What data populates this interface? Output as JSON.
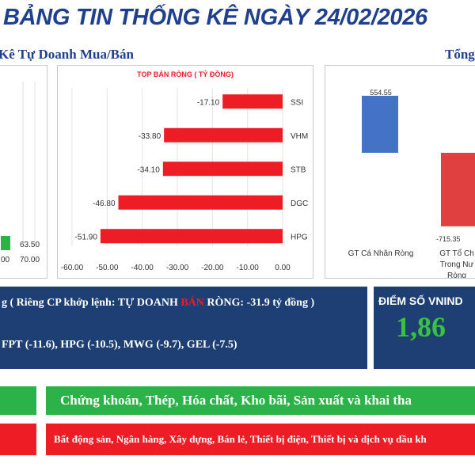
{
  "title": "BẢNG TIN THỐNG KÊ NGÀY 24/02/2026",
  "section_left": "Kê Tự Doanh Mua/Bán",
  "section_right": "Tổng",
  "charts": {
    "left_partial": {
      "bar_label": "63.50",
      "ticks": [
        "00",
        "70.00"
      ]
    },
    "right_partial": {
      "labels": [
        "554.55",
        "-715.35"
      ],
      "categories": [
        "GT Cá Nhân Ròng",
        "GT Tổ Ch",
        "Trong Nư",
        "Ròng"
      ]
    }
  },
  "chart_data": [
    {
      "type": "bar",
      "orientation": "horizontal",
      "title": "TOP BÁN RÒNG ( TỶ ĐỒNG)",
      "categories": [
        "SSI",
        "VHM",
        "STB",
        "DGC",
        "HPG"
      ],
      "values": [
        -17.1,
        -33.8,
        -34.1,
        -46.8,
        -51.9
      ],
      "value_labels": [
        "-17.10",
        "-33.80",
        "-34.10",
        "-46.80",
        "-51.90"
      ],
      "xlim": [
        -60,
        0
      ],
      "ticks": [
        "-60.00",
        "-50.00",
        "-40.00",
        "-30.00",
        "-20.00",
        "-10.00",
        "0.00"
      ],
      "bar_color": "#ee1c25",
      "grid": true
    },
    {
      "type": "bar",
      "title": "",
      "categories": [
        "GT Cá Nhân Ròng",
        "GT Tổ Chức Trong Nước Ròng"
      ],
      "values": [
        554.55,
        -715.35
      ],
      "colors": [
        "#4472c4",
        "#e04040"
      ]
    }
  ],
  "summary": {
    "line1_a": "g ( Riêng CP khớp lệnh: TỰ DOANH ",
    "line1_b": "BÁN",
    "line1_c": " RÒNG: -31.9 tỷ đồng )",
    "line2": "FPT (-11.6), HPG (-10.5), MWG (-9.7), GEL (-7.5)"
  },
  "vnindex": {
    "label": "ĐIỂM SỐ VNIND",
    "value": "1,86"
  },
  "sectors_up": "Chứng khoán, Thép, Hóa chất, Kho bãi, Sản xuất và khai tha",
  "sectors_down": "Bất động sản, Ngân hàng, Xây dựng, Bán lẻ, Thiết bị điện, Thiết bị và dịch vụ dầu kh",
  "colors": {
    "navy": "#1e3f74",
    "green": "#2bb34a",
    "red": "#ee1c25",
    "title": "#1f3f8f"
  }
}
